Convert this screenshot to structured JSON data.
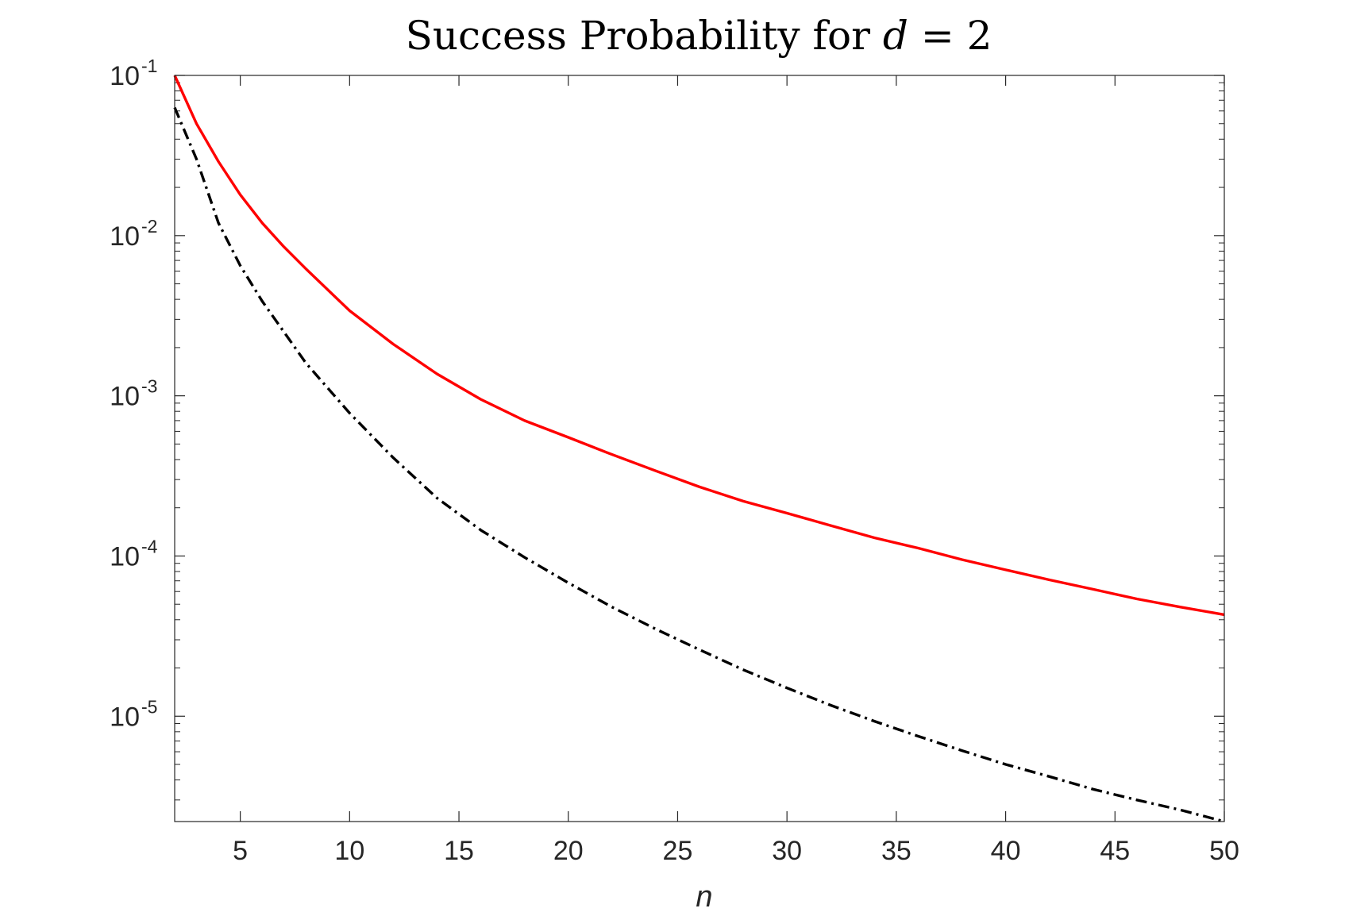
{
  "chart_data": {
    "type": "line",
    "title": "Success Probability for d = 2",
    "title_parts": {
      "prefix": "Success Probability for ",
      "variable": "d",
      "relation": " = 2"
    },
    "xlabel": "n",
    "ylabel": "",
    "xlim": [
      2,
      50
    ],
    "ylim": [
      2.2e-06,
      0.1
    ],
    "yscale": "log",
    "grid": false,
    "box": true,
    "x_ticks": [
      5,
      10,
      15,
      20,
      25,
      30,
      35,
      40,
      45,
      50
    ],
    "x_tick_labels": [
      "5",
      "10",
      "15",
      "20",
      "25",
      "30",
      "35",
      "40",
      "45",
      "50"
    ],
    "y_ticks": [
      {
        "value": 0.1,
        "base": "10",
        "exp": "-1"
      },
      {
        "value": 0.01,
        "base": "10",
        "exp": "-2"
      },
      {
        "value": 0.001,
        "base": "10",
        "exp": "-3"
      },
      {
        "value": 0.0001,
        "base": "10",
        "exp": "-4"
      },
      {
        "value": 1e-05,
        "base": "10",
        "exp": "-5"
      }
    ],
    "series": [
      {
        "color": "#ff0000",
        "style": "solid",
        "x": [
          2,
          3,
          4,
          5,
          6,
          7,
          8,
          10,
          12,
          14,
          16,
          18,
          20,
          22,
          24,
          26,
          28,
          30,
          32,
          34,
          36,
          38,
          40,
          42,
          44,
          46,
          48,
          50
        ],
        "y": [
          0.1,
          0.05,
          0.029,
          0.018,
          0.012,
          0.0085,
          0.0062,
          0.0034,
          0.0021,
          0.00137,
          0.00095,
          0.0007,
          0.00055,
          0.00043,
          0.00034,
          0.00027,
          0.00022,
          0.000185,
          0.000155,
          0.00013,
          0.000112,
          9.5e-05,
          8.2e-05,
          7.1e-05,
          6.2e-05,
          5.4e-05,
          4.8e-05,
          4.3e-05
        ]
      },
      {
        "color": "#000000",
        "style": "dash-dot",
        "x": [
          2,
          3,
          4,
          5,
          6,
          7,
          8,
          10,
          12,
          14,
          16,
          18,
          20,
          22,
          24,
          26,
          28,
          30,
          32,
          34,
          36,
          38,
          40,
          42,
          44,
          46,
          48,
          50
        ],
        "y": [
          0.063,
          0.03,
          0.012,
          0.0065,
          0.0039,
          0.0025,
          0.0016,
          0.00078,
          0.00041,
          0.00023,
          0.000145,
          9.8e-05,
          6.8e-05,
          4.8e-05,
          3.5e-05,
          2.6e-05,
          1.95e-05,
          1.5e-05,
          1.17e-05,
          9.3e-06,
          7.5e-06,
          6.1e-06,
          5e-06,
          4.2e-06,
          3.5e-06,
          3e-06,
          2.6e-06,
          2.2e-06
        ]
      }
    ]
  }
}
